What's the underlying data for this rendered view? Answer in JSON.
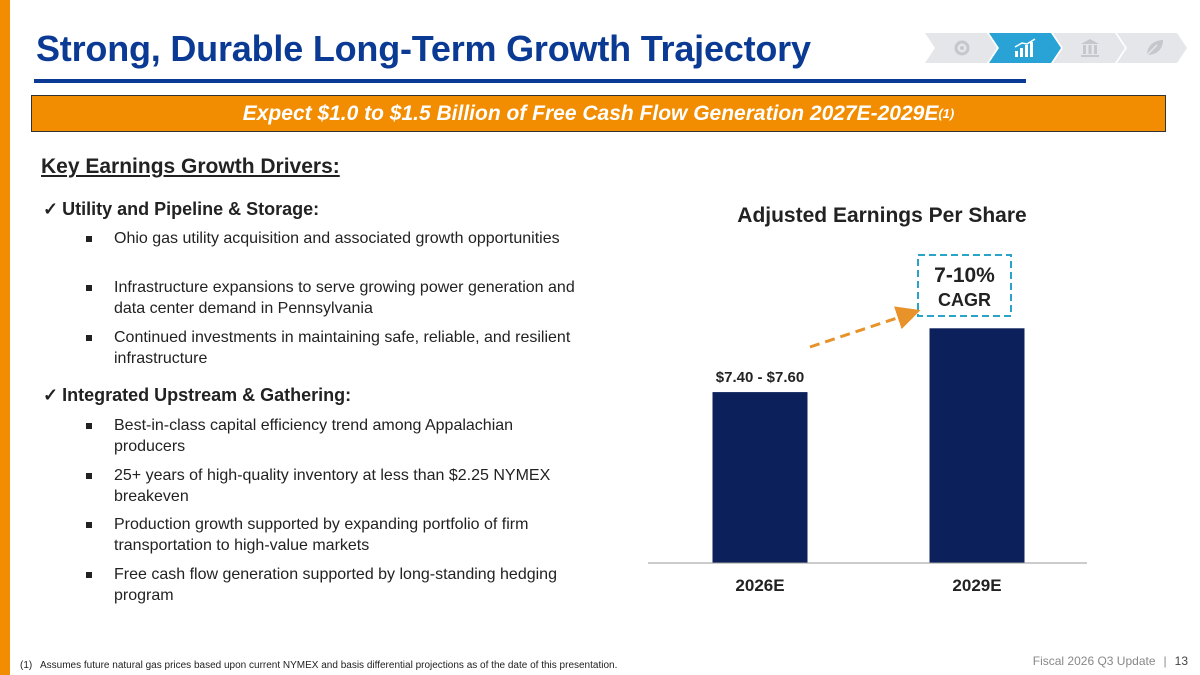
{
  "slide": {
    "title": "Strong, Durable Long-Term Growth Trajectory",
    "banner": "Expect $1.0 to $1.5 Billion of Free Cash Flow Generation 2027E-2029E",
    "banner_sup": "(1)",
    "drivers_title": "Key Earnings Growth Drivers:",
    "sections": [
      {
        "heading": "Utility and Pipeline & Storage:",
        "bullets": [
          "Ohio gas utility acquisition and associated growth opportunities",
          "Infrastructure expansions to serve growing power generation and data center demand in Pennsylvania",
          "Continued investments in maintaining safe, reliable, and resilient infrastructure"
        ]
      },
      {
        "heading": "Integrated Upstream & Gathering:",
        "bullets": [
          "Best-in-class capital efficiency trend among Appalachian producers",
          "25+ years of high-quality inventory at less than $2.25 NYMEX breakeven",
          "Production growth supported by expanding portfolio of firm transportation to high-value markets",
          "Free cash flow generation supported by long-standing hedging program"
        ]
      }
    ],
    "check_glyph": "✓",
    "footnote_num": "(1)",
    "footnote": "Assumes future natural gas prices based upon current NYMEX and basis differential projections as of the date of this presentation.",
    "footer_label": "Fiscal 2026 Q3 Update",
    "footer_sep": "|",
    "page_number": "13",
    "nav_icons": [
      "gear-icon",
      "growth-chart-icon",
      "bank-icon",
      "leaf-icon"
    ],
    "colors": {
      "accent_orange": "#f28c00",
      "title_blue": "#0a3a94",
      "bar_navy": "#0c215c",
      "callout_teal": "#2aa3c9",
      "nav_active": "#29a3d6"
    }
  },
  "chart_data": {
    "type": "bar",
    "title": "Adjusted Earnings Per Share",
    "categories": [
      "2026E",
      "2029E"
    ],
    "values": [
      7.5,
      10.3
    ],
    "data_labels": [
      "$7.40 - $7.60",
      ""
    ],
    "callout": {
      "line1": "7-10%",
      "line2": "CAGR"
    },
    "ylim": [
      0,
      12.2
    ],
    "grid": false,
    "legend": "none"
  }
}
